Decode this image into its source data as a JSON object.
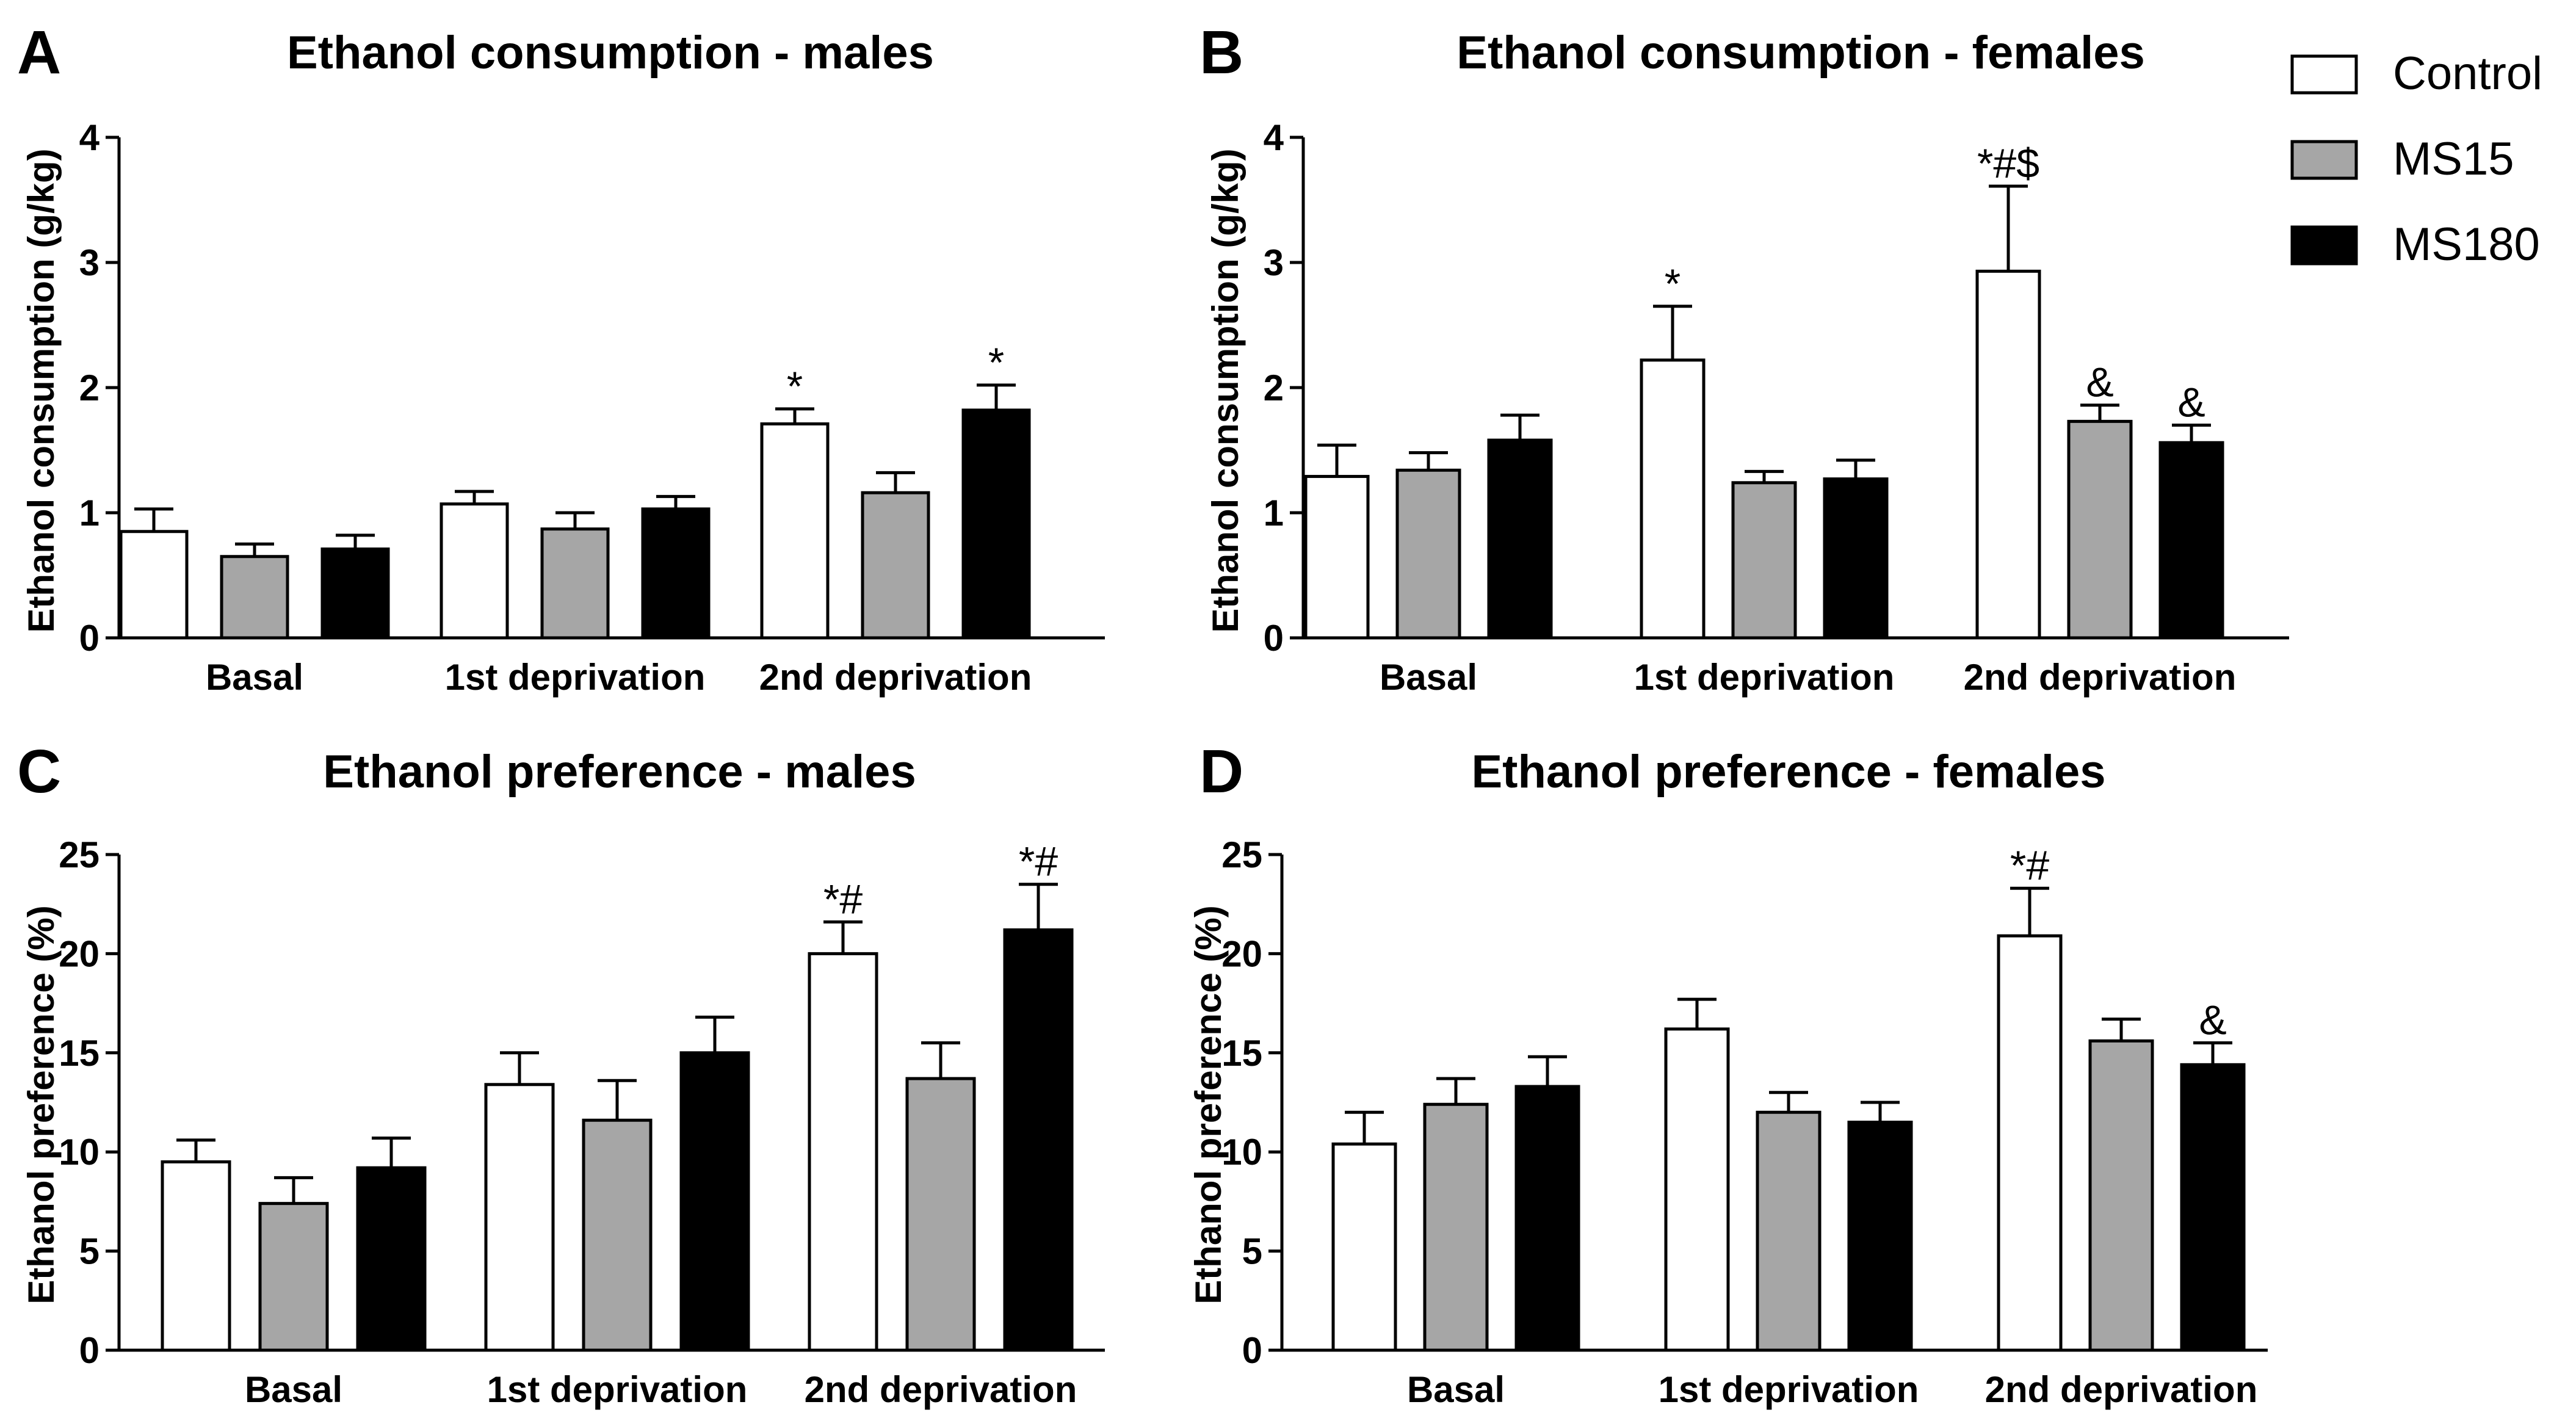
{
  "legend": {
    "title": "",
    "entries": [
      {
        "name": "Control",
        "fill": "#ffffff"
      },
      {
        "name": "MS15",
        "fill": "#a6a6a6"
      },
      {
        "name": "MS180",
        "fill": "#000000"
      }
    ]
  },
  "colors": {
    "control": "#ffffff",
    "ms15": "#a6a6a6",
    "ms180": "#000000",
    "stroke": "#000000"
  },
  "chart_data": [
    {
      "panel": "A",
      "type": "bar",
      "title": "Ethanol consumption - males",
      "xlabel": "",
      "ylabel": "Ethanol consumption (g/kg)",
      "ylim": [
        0,
        4
      ],
      "yticks": [
        0,
        1,
        2,
        3,
        4
      ],
      "categories": [
        "Basal",
        "1st deprivation",
        "2nd deprivation"
      ],
      "series": [
        {
          "name": "Control",
          "values": [
            0.85,
            1.07,
            1.71
          ],
          "errors": [
            0.18,
            0.1,
            0.12
          ],
          "annotations": [
            "",
            "",
            "*"
          ]
        },
        {
          "name": "MS15",
          "values": [
            0.65,
            0.87,
            1.16
          ],
          "errors": [
            0.1,
            0.13,
            0.16
          ],
          "annotations": [
            "",
            "",
            ""
          ]
        },
        {
          "name": "MS180",
          "values": [
            0.71,
            1.03,
            1.82
          ],
          "errors": [
            0.11,
            0.1,
            0.2
          ],
          "annotations": [
            "",
            "",
            "*"
          ]
        }
      ]
    },
    {
      "panel": "B",
      "type": "bar",
      "title": "Ethanol consumption - females",
      "xlabel": "",
      "ylabel": "Ethanol consumption (g/kg)",
      "ylim": [
        0,
        4
      ],
      "yticks": [
        0,
        1,
        2,
        3,
        4
      ],
      "categories": [
        "Basal",
        "1st deprivation",
        "2nd deprivation"
      ],
      "series": [
        {
          "name": "Control",
          "values": [
            1.29,
            2.22,
            2.93
          ],
          "errors": [
            0.25,
            0.43,
            0.68
          ],
          "annotations": [
            "",
            "*",
            "*#$"
          ]
        },
        {
          "name": "MS15",
          "values": [
            1.34,
            1.24,
            1.73
          ],
          "errors": [
            0.14,
            0.09,
            0.13
          ],
          "annotations": [
            "",
            "",
            "&"
          ]
        },
        {
          "name": "MS180",
          "values": [
            1.58,
            1.27,
            1.56
          ],
          "errors": [
            0.2,
            0.15,
            0.14
          ],
          "annotations": [
            "",
            "",
            "&"
          ]
        }
      ]
    },
    {
      "panel": "C",
      "type": "bar",
      "title": "Ethanol preference - males",
      "xlabel": "",
      "ylabel": "Ethanol preference (%)",
      "ylim": [
        0,
        25
      ],
      "yticks": [
        0,
        5,
        10,
        15,
        20,
        25
      ],
      "categories": [
        "Basal",
        "1st deprivation",
        "2nd deprivation"
      ],
      "series": [
        {
          "name": "Control",
          "values": [
            9.5,
            13.4,
            20.0
          ],
          "errors": [
            1.1,
            1.6,
            1.6
          ],
          "annotations": [
            "",
            "",
            "*#"
          ]
        },
        {
          "name": "MS15",
          "values": [
            7.4,
            11.6,
            13.7
          ],
          "errors": [
            1.3,
            2.0,
            1.8
          ],
          "annotations": [
            "",
            "",
            ""
          ]
        },
        {
          "name": "MS180",
          "values": [
            9.2,
            15.0,
            21.2
          ],
          "errors": [
            1.5,
            1.8,
            2.3
          ],
          "annotations": [
            "",
            "",
            "*#"
          ]
        }
      ]
    },
    {
      "panel": "D",
      "type": "bar",
      "title": "Ethanol preference - females",
      "xlabel": "",
      "ylabel": "Ethanol preference (%)",
      "ylim": [
        0,
        25
      ],
      "yticks": [
        0,
        5,
        10,
        15,
        20,
        25
      ],
      "categories": [
        "Basal",
        "1st deprivation",
        "2nd deprivation"
      ],
      "series": [
        {
          "name": "Control",
          "values": [
            10.4,
            16.2,
            20.9
          ],
          "errors": [
            1.6,
            1.5,
            2.4
          ],
          "annotations": [
            "",
            "",
            "*#"
          ]
        },
        {
          "name": "MS15",
          "values": [
            12.4,
            12.0,
            15.6
          ],
          "errors": [
            1.3,
            1.0,
            1.1
          ],
          "annotations": [
            "",
            "",
            ""
          ]
        },
        {
          "name": "MS180",
          "values": [
            13.3,
            11.5,
            14.4
          ],
          "errors": [
            1.5,
            1.0,
            1.1
          ],
          "annotations": [
            "",
            "",
            "&"
          ]
        }
      ]
    }
  ]
}
